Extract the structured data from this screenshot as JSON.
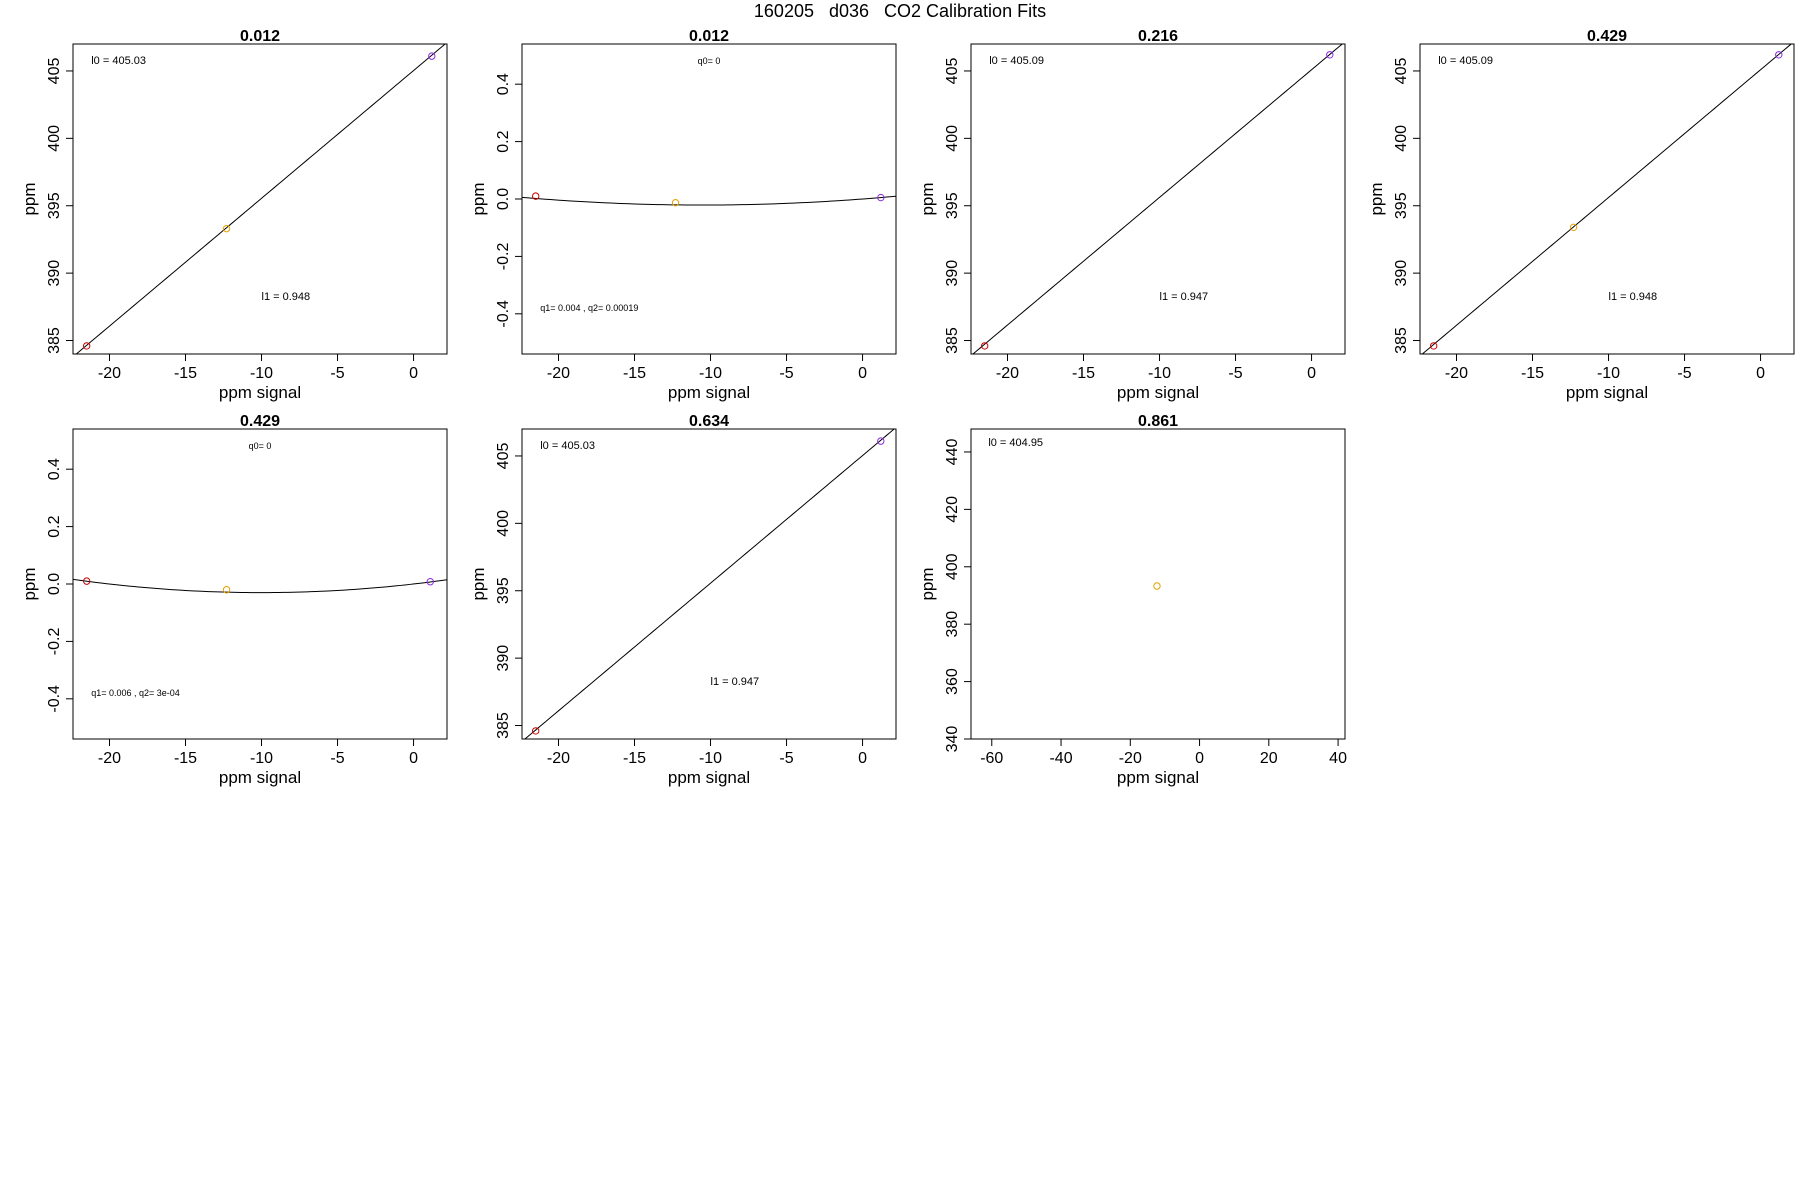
{
  "figure": {
    "title": "160205   d036   CO2 Calibration Fits"
  },
  "chart_data": [
    {
      "type": "scatter",
      "title": "0.012",
      "xlabel": "ppm signal",
      "ylabel": "ppm",
      "xlim": [
        -22.4,
        2.2
      ],
      "ylim": [
        384,
        407
      ],
      "xticks": [
        -20,
        -15,
        -10,
        -5,
        0
      ],
      "yticks": [
        385,
        390,
        395,
        400,
        405
      ],
      "points": [
        {
          "x": -21.5,
          "y": 384.6,
          "color": "#cc0000"
        },
        {
          "x": -12.3,
          "y": 393.3,
          "color": "#e6a100"
        },
        {
          "x": 1.2,
          "y": 406.1,
          "color": "#8a2be2"
        }
      ],
      "fit": {
        "kind": "linear",
        "intercept": 405.03,
        "slope": 0.948
      },
      "annotations": [
        {
          "text": "l0 =  405.03",
          "x": -21.2,
          "y": 405.5
        },
        {
          "text": "l1 =  0.948",
          "x": -10.0,
          "y": 388.0
        }
      ]
    },
    {
      "type": "scatter",
      "title": "0.012",
      "xlabel": "ppm signal",
      "ylabel": "ppm",
      "xlim": [
        -22.4,
        2.2
      ],
      "ylim": [
        -0.54,
        0.54
      ],
      "xticks": [
        -20,
        -15,
        -10,
        -5,
        0
      ],
      "yticks": [
        -0.4,
        -0.2,
        0.0,
        0.2,
        0.4
      ],
      "ytick_labels": [
        "-0.4",
        "-0.2",
        "0.0",
        "0.2",
        "0.4"
      ],
      "points": [
        {
          "x": -21.5,
          "y": 0.01,
          "color": "#cc0000"
        },
        {
          "x": -12.3,
          "y": -0.013,
          "color": "#e6a100"
        },
        {
          "x": 1.2,
          "y": 0.005,
          "color": "#8a2be2"
        }
      ],
      "fit": {
        "kind": "quadratic",
        "q0": 0,
        "q1": 0.004,
        "q2": 0.00019
      },
      "annotations": [
        {
          "text": "q0= 0",
          "x": -10.1,
          "y": 0.47
        },
        {
          "text": "q1= 0.004 , q2= 0.00019",
          "x": -21.2,
          "y": -0.39
        }
      ]
    },
    {
      "type": "scatter",
      "title": "0.216",
      "xlabel": "ppm signal",
      "ylabel": "ppm",
      "xlim": [
        -22.4,
        2.2
      ],
      "ylim": [
        384,
        407
      ],
      "xticks": [
        -20,
        -15,
        -10,
        -5,
        0
      ],
      "yticks": [
        385,
        390,
        395,
        400,
        405
      ],
      "points": [
        {
          "x": -21.5,
          "y": 384.6,
          "color": "#cc0000"
        },
        {
          "x": 1.2,
          "y": 406.2,
          "color": "#8a2be2"
        }
      ],
      "fit": {
        "kind": "linear",
        "intercept": 405.09,
        "slope": 0.947
      },
      "annotations": [
        {
          "text": "l0 =  405.09",
          "x": -21.2,
          "y": 405.5
        },
        {
          "text": "l1 =  0.947",
          "x": -10.0,
          "y": 388.0
        }
      ]
    },
    {
      "type": "scatter",
      "title": "0.429",
      "xlabel": "ppm signal",
      "ylabel": "ppm",
      "xlim": [
        -22.4,
        2.2
      ],
      "ylim": [
        384,
        407
      ],
      "xticks": [
        -20,
        -15,
        -10,
        -5,
        0
      ],
      "yticks": [
        385,
        390,
        395,
        400,
        405
      ],
      "points": [
        {
          "x": -21.5,
          "y": 384.6,
          "color": "#cc0000"
        },
        {
          "x": -12.3,
          "y": 393.4,
          "color": "#e6a100"
        },
        {
          "x": 1.2,
          "y": 406.2,
          "color": "#8a2be2"
        }
      ],
      "fit": {
        "kind": "linear",
        "intercept": 405.09,
        "slope": 0.948
      },
      "annotations": [
        {
          "text": "l0 =  405.09",
          "x": -21.2,
          "y": 405.5
        },
        {
          "text": "l1 =  0.948",
          "x": -10.0,
          "y": 388.0
        }
      ]
    },
    {
      "type": "scatter",
      "title": "0.429",
      "xlabel": "ppm signal",
      "ylabel": "ppm",
      "xlim": [
        -22.4,
        2.2
      ],
      "ylim": [
        -0.54,
        0.54
      ],
      "xticks": [
        -20,
        -15,
        -10,
        -5,
        0
      ],
      "yticks": [
        -0.4,
        -0.2,
        0.0,
        0.2,
        0.4
      ],
      "ytick_labels": [
        "-0.4",
        "-0.2",
        "0.0",
        "0.2",
        "0.4"
      ],
      "points": [
        {
          "x": -21.5,
          "y": 0.01,
          "color": "#cc0000"
        },
        {
          "x": -12.3,
          "y": -0.02,
          "color": "#e6a100"
        },
        {
          "x": 1.1,
          "y": 0.008,
          "color": "#8a2be2"
        }
      ],
      "fit": {
        "kind": "quadratic",
        "q0": 0,
        "q1": 0.006,
        "q2": 0.0003
      },
      "annotations": [
        {
          "text": "q0= 0",
          "x": -10.1,
          "y": 0.47
        },
        {
          "text": "q1= 0.006 , q2= 3e-04",
          "x": -21.2,
          "y": -0.39
        }
      ]
    },
    {
      "type": "scatter",
      "title": "0.634",
      "xlabel": "ppm signal",
      "ylabel": "ppm",
      "xlim": [
        -22.4,
        2.2
      ],
      "ylim": [
        384,
        407
      ],
      "xticks": [
        -20,
        -15,
        -10,
        -5,
        0
      ],
      "yticks": [
        385,
        390,
        395,
        400,
        405
      ],
      "points": [
        {
          "x": -21.5,
          "y": 384.6,
          "color": "#cc0000"
        },
        {
          "x": 1.2,
          "y": 406.1,
          "color": "#8a2be2"
        }
      ],
      "fit": {
        "kind": "linear",
        "intercept": 405.03,
        "slope": 0.947
      },
      "annotations": [
        {
          "text": "l0 =  405.03",
          "x": -21.2,
          "y": 405.5
        },
        {
          "text": "l1 =  0.947",
          "x": -10.0,
          "y": 388.0
        }
      ]
    },
    {
      "type": "scatter",
      "title": "0.861",
      "xlabel": "ppm signal",
      "ylabel": "ppm",
      "xlim": [
        -66,
        42
      ],
      "ylim": [
        340,
        448
      ],
      "xticks": [
        -60,
        -40,
        -20,
        0,
        20,
        40
      ],
      "yticks": [
        340,
        360,
        380,
        400,
        420,
        440
      ],
      "points": [
        {
          "x": -12.3,
          "y": 393.3,
          "color": "#e6a100"
        }
      ],
      "annotations": [
        {
          "text": "l0 =  404.95",
          "x": -61,
          "y": 442
        }
      ]
    }
  ]
}
